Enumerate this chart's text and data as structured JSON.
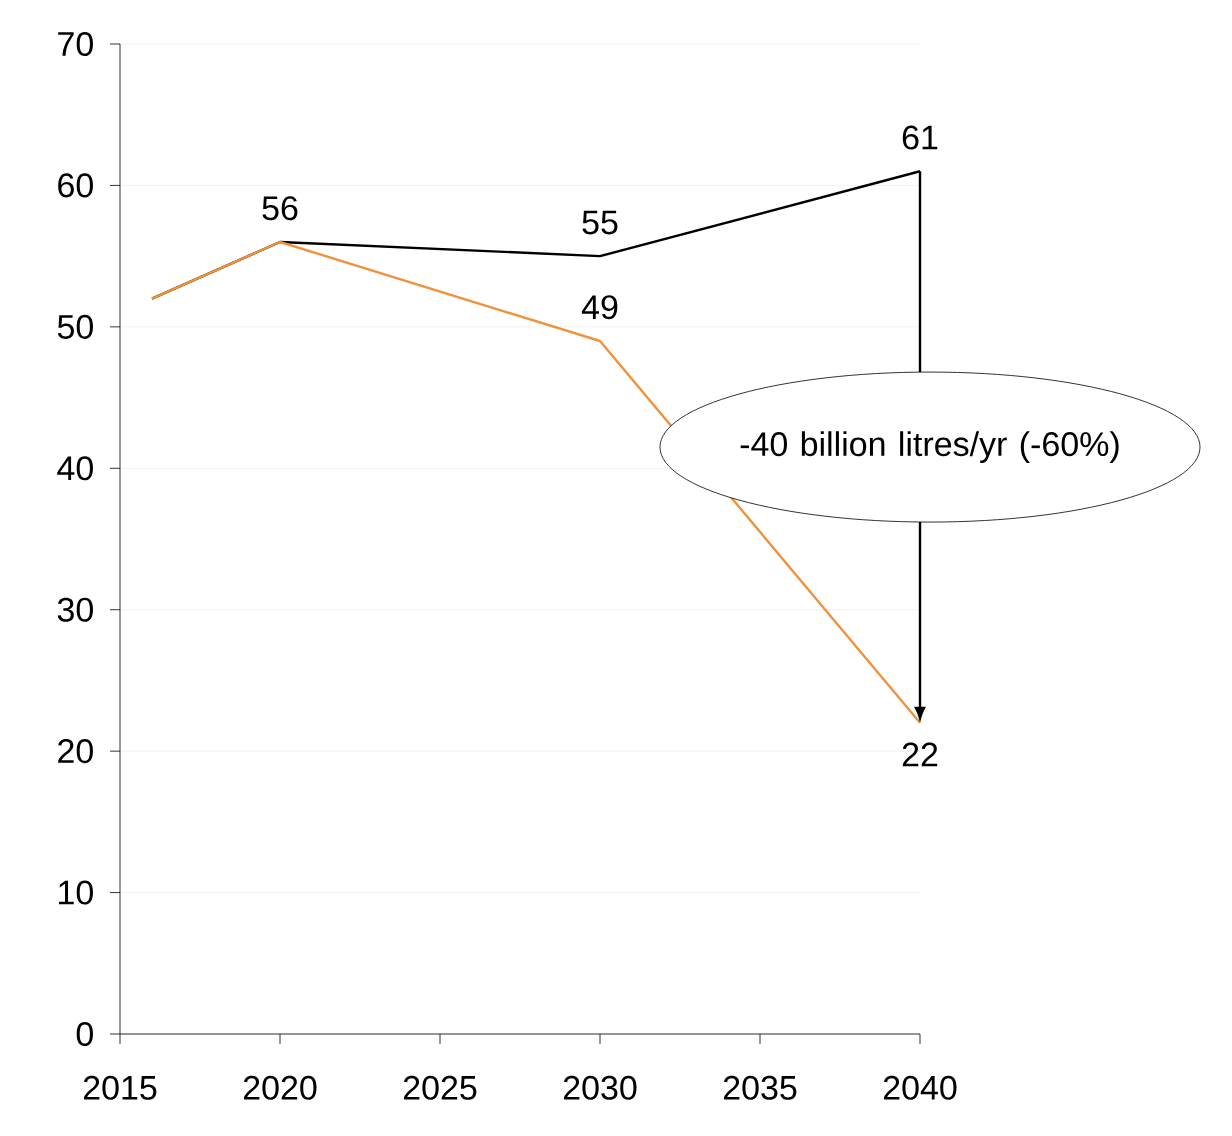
{
  "chart_data": {
    "type": "line",
    "x": [
      2016,
      2020,
      2030,
      2040
    ],
    "series": [
      {
        "color": "#000000",
        "values": [
          52,
          56,
          55,
          61
        ],
        "value_labels": [
          null,
          "56",
          "55",
          "61"
        ]
      },
      {
        "color": "#f0923c",
        "values": [
          52,
          56,
          49,
          22
        ],
        "value_labels": [
          null,
          null,
          "49",
          "22"
        ]
      }
    ],
    "xlim": [
      2015,
      2040
    ],
    "xticks": [
      2015,
      2020,
      2025,
      2030,
      2035,
      2040
    ],
    "ylim": [
      0,
      70
    ],
    "yticks": [
      0,
      10,
      20,
      30,
      40,
      50,
      60,
      70
    ],
    "grid": "y",
    "marker": "none",
    "line_style": "solid",
    "annotations": [
      "-40 billion litres/yr (-60%)"
    ]
  }
}
